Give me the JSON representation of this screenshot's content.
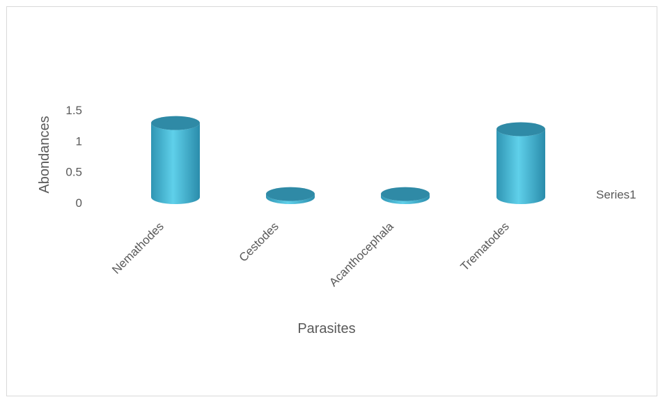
{
  "chart_data": {
    "type": "bar",
    "title": "",
    "xlabel": "Parasites",
    "ylabel": "Abondances",
    "categories": [
      "Nemathodes",
      "Cestodes",
      "Acanthocephala",
      "Trematodes"
    ],
    "series": [
      {
        "name": "Series1",
        "values": [
          1.2,
          0.05,
          0.05,
          1.1
        ]
      }
    ],
    "yticks": [
      "0",
      "0.5",
      "1",
      "1.5"
    ],
    "ylim": [
      0,
      1.5
    ],
    "grid": false,
    "legend": "right",
    "bar_color": "#4bbcd8",
    "bar_top_color": "#2f8aa6"
  }
}
